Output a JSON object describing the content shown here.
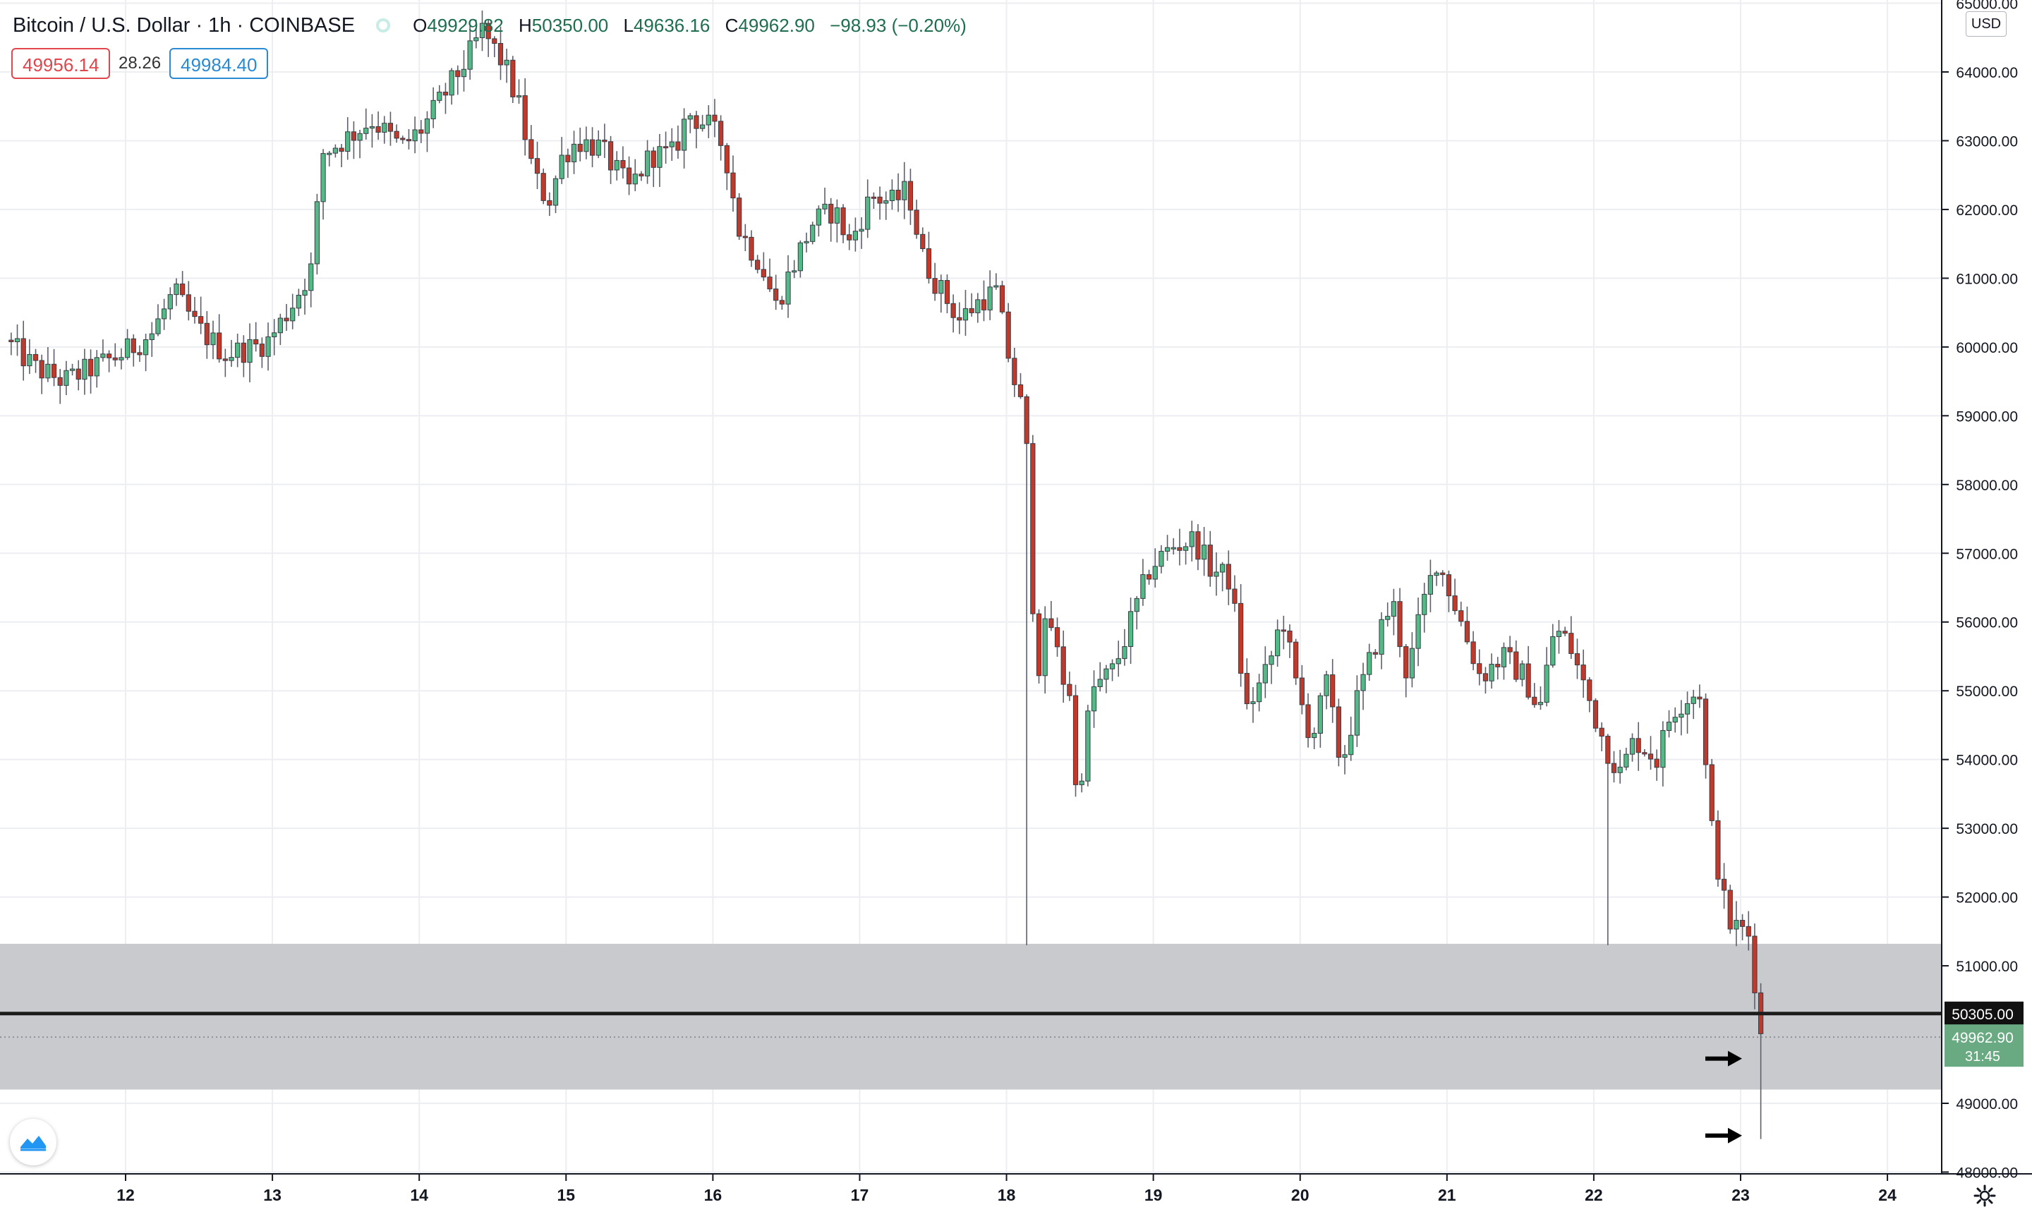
{
  "header": {
    "title": "Bitcoin / U.S. Dollar · 1h · COINBASE",
    "ohlc": {
      "o": "49929.82",
      "h": "50350.00",
      "l": "49636.16",
      "c": "49962.90",
      "change": "−98.93 (−0.20%)"
    },
    "bid": "49956.14",
    "spread": "28.26",
    "ask": "49984.40",
    "currency": "USD"
  },
  "price_axis": {
    "top_partial": "65000.00",
    "labels": [
      "64000.00",
      "63000.00",
      "62000.00",
      "61000.00",
      "60000.00",
      "59000.00",
      "58000.00",
      "57000.00",
      "56000.00",
      "55000.00",
      "54000.00",
      "53000.00",
      "52000.00",
      "51000.00",
      "49000.00",
      "48000.00"
    ],
    "line_label": "50305.00",
    "last_price_label": "49962.90",
    "countdown_label": "31:45"
  },
  "time_axis": {
    "labels": [
      "12",
      "13",
      "14",
      "15",
      "16",
      "17",
      "18",
      "19",
      "20",
      "21",
      "22",
      "23",
      "24"
    ]
  },
  "colors": {
    "up": "#26a69a",
    "down": "#ef5350",
    "up_body": "#53b987",
    "down_body": "#c0392b",
    "zone": "#c6c7cb",
    "line": "#1c1c1c",
    "grid": "#eceef2"
  },
  "icons": {
    "logo": "tradingview-logo-icon",
    "settings": "gear-icon",
    "arrow": "right-arrow-icon"
  },
  "chart_data": {
    "type": "candlestick",
    "symbol": "BTCUSD",
    "interval": "1h",
    "exchange": "COINBASE",
    "xlabel": "",
    "ylabel": "",
    "ylim": [
      47950,
      65050
    ],
    "xlim_days": [
      11.2,
      24.3
    ],
    "x_ticks": [
      12,
      13,
      14,
      15,
      16,
      17,
      18,
      19,
      20,
      21,
      22,
      23,
      24
    ],
    "grid": true,
    "anchors_day_price": [
      [
        11.2,
        60100
      ],
      [
        11.4,
        59700
      ],
      [
        11.6,
        59500
      ],
      [
        11.8,
        59700
      ],
      [
        12.0,
        59900
      ],
      [
        12.2,
        60200
      ],
      [
        12.35,
        60800
      ],
      [
        12.5,
        60300
      ],
      [
        12.7,
        59900
      ],
      [
        12.9,
        60000
      ],
      [
        13.0,
        60100
      ],
      [
        13.15,
        60600
      ],
      [
        13.3,
        61200
      ],
      [
        13.35,
        62800
      ],
      [
        13.5,
        63000
      ],
      [
        13.7,
        63300
      ],
      [
        13.9,
        62900
      ],
      [
        14.05,
        63200
      ],
      [
        14.2,
        63700
      ],
      [
        14.35,
        64200
      ],
      [
        14.45,
        64600
      ],
      [
        14.6,
        64100
      ],
      [
        14.7,
        63500
      ],
      [
        14.8,
        62500
      ],
      [
        14.9,
        62100
      ],
      [
        15.0,
        62800
      ],
      [
        15.1,
        63000
      ],
      [
        15.25,
        62900
      ],
      [
        15.45,
        62300
      ],
      [
        15.6,
        62800
      ],
      [
        15.75,
        62800
      ],
      [
        15.85,
        63400
      ],
      [
        16.0,
        63200
      ],
      [
        16.1,
        62900
      ],
      [
        16.2,
        61700
      ],
      [
        16.35,
        61200
      ],
      [
        16.45,
        60600
      ],
      [
        16.55,
        61100
      ],
      [
        16.7,
        61800
      ],
      [
        16.85,
        62000
      ],
      [
        16.95,
        61500
      ],
      [
        17.1,
        62200
      ],
      [
        17.25,
        62100
      ],
      [
        17.35,
        62300
      ],
      [
        17.45,
        61300
      ],
      [
        17.55,
        60900
      ],
      [
        17.7,
        60400
      ],
      [
        17.85,
        60700
      ],
      [
        17.95,
        60800
      ],
      [
        18.05,
        59700
      ],
      [
        18.15,
        58900
      ],
      [
        18.2,
        56300
      ],
      [
        18.25,
        55200
      ],
      [
        18.3,
        56200
      ],
      [
        18.4,
        55200
      ],
      [
        18.45,
        55000
      ],
      [
        18.5,
        53300
      ],
      [
        18.6,
        55000
      ],
      [
        18.75,
        55300
      ],
      [
        18.85,
        55900
      ],
      [
        19.0,
        56800
      ],
      [
        19.15,
        57100
      ],
      [
        19.3,
        57200
      ],
      [
        19.4,
        56800
      ],
      [
        19.55,
        56600
      ],
      [
        19.65,
        54700
      ],
      [
        19.8,
        55300
      ],
      [
        19.9,
        56100
      ],
      [
        20.0,
        55000
      ],
      [
        20.1,
        54300
      ],
      [
        20.2,
        55100
      ],
      [
        20.3,
        53900
      ],
      [
        20.4,
        54800
      ],
      [
        20.55,
        55800
      ],
      [
        20.65,
        56300
      ],
      [
        20.75,
        55200
      ],
      [
        20.85,
        56200
      ],
      [
        20.95,
        56900
      ],
      [
        21.05,
        56400
      ],
      [
        21.15,
        55800
      ],
      [
        21.25,
        55200
      ],
      [
        21.4,
        55500
      ],
      [
        21.55,
        55200
      ],
      [
        21.65,
        54700
      ],
      [
        21.75,
        55900
      ],
      [
        21.85,
        55700
      ],
      [
        22.0,
        54800
      ],
      [
        22.1,
        54200
      ],
      [
        22.2,
        53800
      ],
      [
        22.3,
        54300
      ],
      [
        22.45,
        54000
      ],
      [
        22.55,
        54700
      ],
      [
        22.65,
        54900
      ],
      [
        22.75,
        55000
      ],
      [
        22.8,
        53300
      ],
      [
        22.9,
        52000
      ],
      [
        22.95,
        51600
      ],
      [
        23.05,
        51500
      ],
      [
        23.1,
        51400
      ],
      [
        23.13,
        50300
      ],
      [
        23.16,
        49962.9
      ]
    ],
    "notable_wicks": [
      {
        "day": 18.15,
        "low": 51300
      },
      {
        "day": 22.1,
        "low": 51300
      },
      {
        "day": 23.13,
        "low": 48480
      }
    ],
    "last_candle": {
      "open": 49929.82,
      "high": 50350.0,
      "low": 49636.16,
      "close": 49962.9
    },
    "horizontal_line": 50305.0,
    "support_zone": [
      49200,
      51320
    ],
    "last_price": 49962.9,
    "annotations": [
      {
        "type": "arrow",
        "day": 23.0,
        "price": 49650
      },
      {
        "type": "arrow",
        "day": 23.0,
        "price": 48530
      }
    ]
  }
}
